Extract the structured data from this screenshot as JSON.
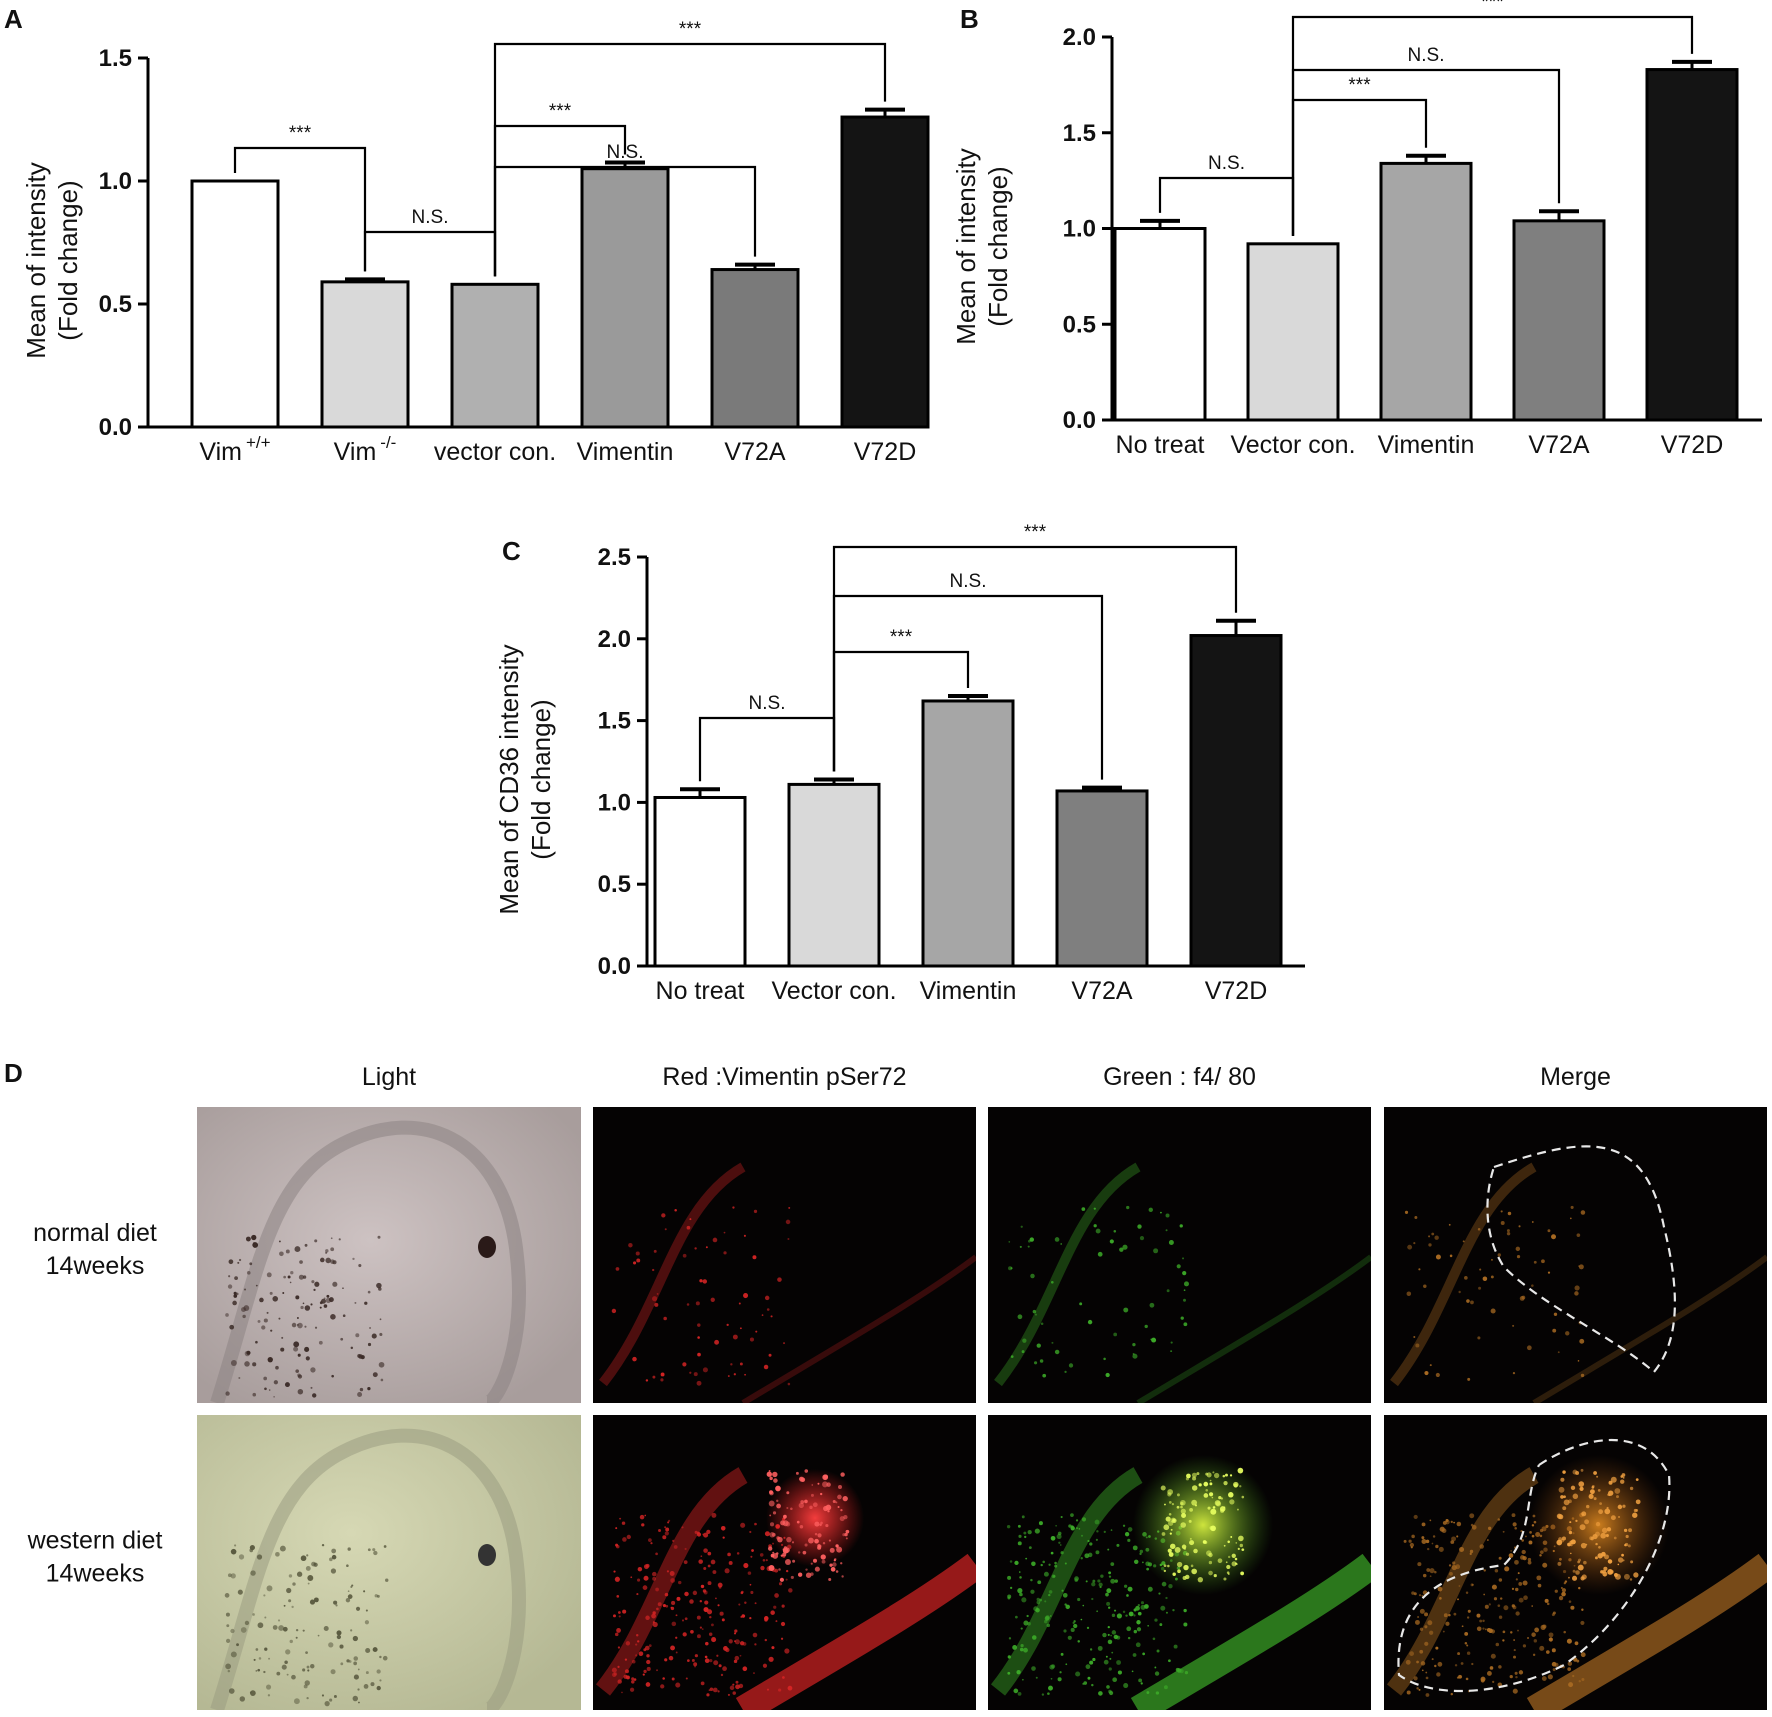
{
  "chart_data": [
    {
      "panel": "A",
      "type": "bar",
      "ylabel": "Mean of intensity\n(Fold change)",
      "ylim": [
        0,
        1.5
      ],
      "yticks": [
        "0.0",
        "0.5",
        "1.0",
        "1.5"
      ],
      "categories": [
        {
          "base": "Vim",
          "sup": "+/+"
        },
        {
          "base": "Vim",
          "sup": "-/-"
        },
        {
          "base": "vector con.",
          "sup": ""
        },
        {
          "base": "Vimentin",
          "sup": ""
        },
        {
          "base": "V72A",
          "sup": ""
        },
        {
          "base": "V72D",
          "sup": ""
        }
      ],
      "values": [
        1.0,
        0.59,
        0.58,
        1.05,
        0.64,
        1.26
      ],
      "errors": [
        0.0,
        0.01,
        0.0,
        0.025,
        0.02,
        0.03
      ],
      "colors": [
        "#ffffff",
        "#d9d9d9",
        "#b0b0b0",
        "#9a9a9a",
        "#7a7a7a",
        "#141414"
      ],
      "significance": [
        {
          "from": 0,
          "to": 1,
          "label": "***"
        },
        {
          "from": 1,
          "to": 2,
          "label": "N.S."
        },
        {
          "from": 2,
          "to": 3,
          "label": "***"
        },
        {
          "from": 2,
          "to": 4,
          "label": "N.S."
        },
        {
          "from": 2,
          "to": 5,
          "label": "***"
        }
      ]
    },
    {
      "panel": "B",
      "type": "bar",
      "ylabel": "Mean of  intensity\n(Fold change)",
      "ylim": [
        0,
        2.0
      ],
      "yticks": [
        "0.0",
        "0.5",
        "1.0",
        "1.5",
        "2.0"
      ],
      "categories": [
        {
          "base": "No treat",
          "sup": ""
        },
        {
          "base": "Vector con.",
          "sup": ""
        },
        {
          "base": "Vimentin",
          "sup": ""
        },
        {
          "base": "V72A",
          "sup": ""
        },
        {
          "base": "V72D",
          "sup": ""
        }
      ],
      "values": [
        1.0,
        0.92,
        1.34,
        1.04,
        1.83
      ],
      "errors": [
        0.04,
        0.0,
        0.04,
        0.05,
        0.04
      ],
      "colors": [
        "#ffffff",
        "#d9d9d9",
        "#a6a6a6",
        "#7f7f7f",
        "#141414"
      ],
      "significance": [
        {
          "from": 0,
          "to": 1,
          "label": "N.S."
        },
        {
          "from": 1,
          "to": 2,
          "label": "***"
        },
        {
          "from": 1,
          "to": 3,
          "label": "N.S."
        },
        {
          "from": 1,
          "to": 4,
          "label": "***"
        }
      ]
    },
    {
      "panel": "C",
      "type": "bar",
      "ylabel": "Mean of CD36 intensity\n(Fold change)",
      "ylim": [
        0,
        2.5
      ],
      "yticks": [
        "0.0",
        "0.5",
        "1.0",
        "1.5",
        "2.0",
        "2.5"
      ],
      "categories": [
        {
          "base": "No treat",
          "sup": ""
        },
        {
          "base": "Vector con.",
          "sup": ""
        },
        {
          "base": "Vimentin",
          "sup": ""
        },
        {
          "base": "V72A",
          "sup": ""
        },
        {
          "base": "V72D",
          "sup": ""
        }
      ],
      "values": [
        1.03,
        1.11,
        1.62,
        1.07,
        2.02
      ],
      "errors": [
        0.05,
        0.03,
        0.03,
        0.02,
        0.09
      ],
      "colors": [
        "#ffffff",
        "#d9d9d9",
        "#a6a6a6",
        "#7f7f7f",
        "#141414"
      ],
      "significance": [
        {
          "from": 0,
          "to": 1,
          "label": "N.S."
        },
        {
          "from": 1,
          "to": 2,
          "label": "***"
        },
        {
          "from": 1,
          "to": 3,
          "label": "N.S."
        },
        {
          "from": 1,
          "to": 4,
          "label": "***"
        }
      ]
    }
  ],
  "panel_d": {
    "letter": "D",
    "columns": [
      "Light",
      "Red :Vimentin  pSer72",
      "Green : f4/ 80",
      "Merge"
    ],
    "rows": [
      "normal diet\n14weeks",
      "western diet\n14weeks"
    ]
  }
}
